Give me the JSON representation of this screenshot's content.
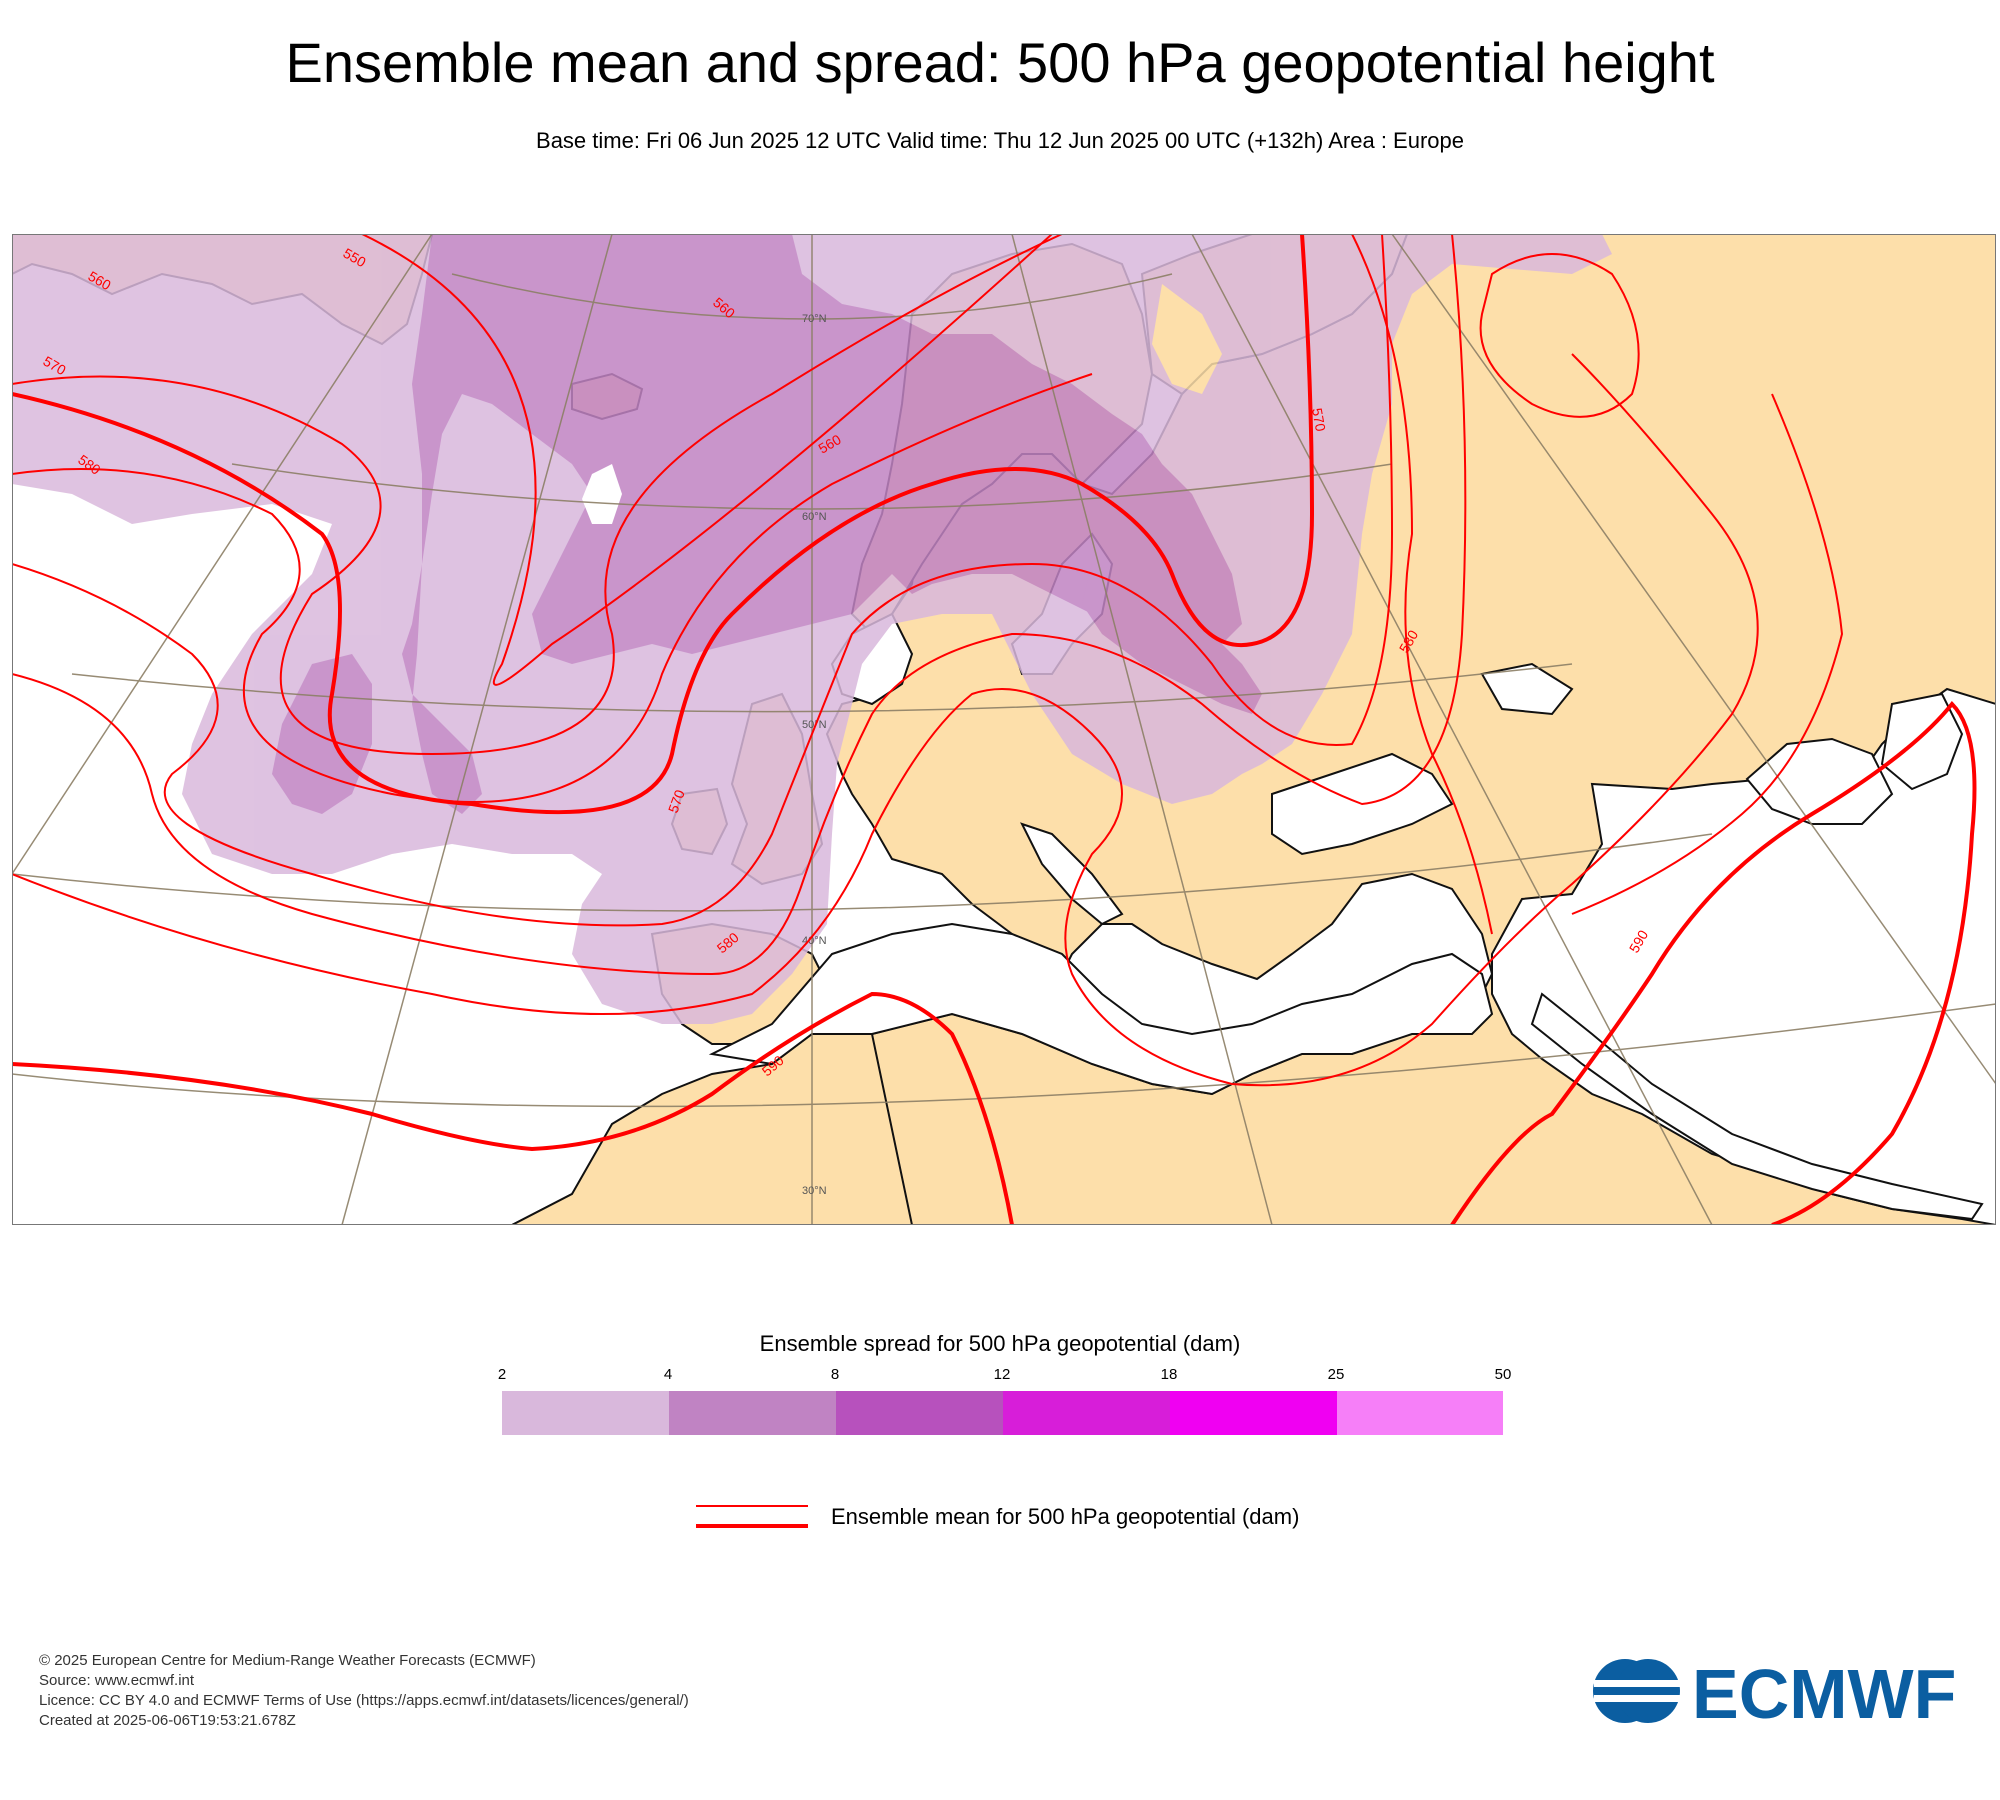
{
  "title": "Ensemble mean and spread: 500 hPa geopotential height",
  "subtitle": "Base time: Fri 06 Jun 2025 12 UTC Valid time: Thu 12 Jun 2025 00 UTC (+132h) Area : Europe",
  "map": {
    "area": "Europe",
    "colors": {
      "land": "#fddfaa",
      "sea": "#ffffff",
      "contour": "#ff0000",
      "coast": "#111111",
      "grid": "#8c7f66"
    },
    "latitude_labels": [
      "70°N",
      "60°N",
      "50°N",
      "40°N",
      "30°N"
    ],
    "contour_labels": [
      "550",
      "560",
      "570",
      "560",
      "580",
      "560",
      "570",
      "580",
      "580",
      "570",
      "590",
      "590",
      "580"
    ]
  },
  "legend": {
    "spread_title": "Ensemble spread for 500 hPa geopotential (dam)",
    "spread_ticks": [
      "2",
      "4",
      "8",
      "12",
      "18",
      "25",
      "50"
    ],
    "spread_colors": [
      "#d9b8dc",
      "#c083c3",
      "#b751bd",
      "#d71ed9",
      "#f000f2",
      "#f67ff8"
    ],
    "mean_title": "Ensemble mean for 500 hPa geopotential (dam)"
  },
  "footer": {
    "copyright": "© 2025 European Centre for Medium-Range Weather Forecasts (ECMWF)",
    "source": "Source: www.ecmwf.int",
    "licence": "Licence: CC BY 4.0 and ECMWF Terms of Use (https://apps.ecmwf.int/datasets/licences/general/)",
    "created": "Created at 2025-06-06T19:53:21.678Z"
  },
  "logo": {
    "text": "ECMWF",
    "color": "#0b5ea1"
  }
}
